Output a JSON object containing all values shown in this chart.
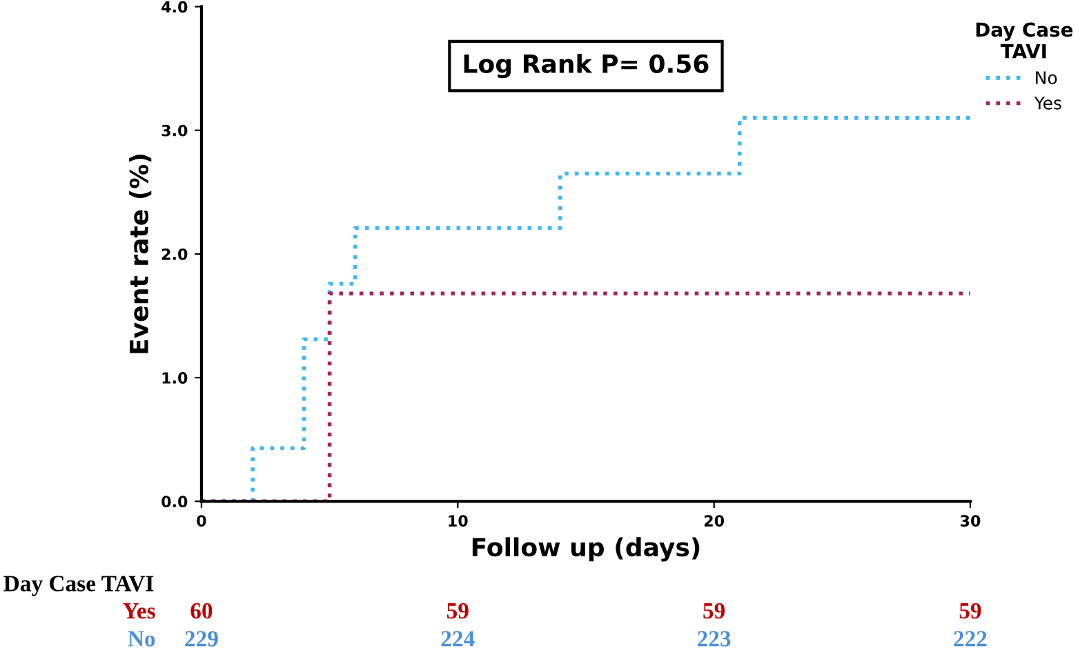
{
  "chart_data": {
    "type": "step",
    "xlabel": "Follow up (days)",
    "ylabel": "Event rate (%)",
    "legend_title": "Day Case\nTAVI",
    "series": [
      {
        "name": "No",
        "color": "#3db8f5",
        "x": [
          0,
          2,
          4,
          5,
          6,
          14,
          21,
          30
        ],
        "values": [
          0,
          0.43,
          1.31,
          1.76,
          2.21,
          2.65,
          3.1,
          3.1
        ]
      },
      {
        "name": "Yes",
        "color": "#a3265a",
        "x": [
          0,
          5,
          30
        ],
        "values": [
          0,
          1.68,
          1.68
        ]
      }
    ],
    "xlim": [
      0,
      30
    ],
    "ylim": [
      0,
      4
    ],
    "xticks": [
      0,
      10,
      20,
      30
    ],
    "yticks": [
      {
        "value": 0,
        "label": "0.0"
      },
      {
        "value": 1,
        "label": "1.0"
      },
      {
        "value": 2,
        "label": "2.0"
      },
      {
        "value": 3,
        "label": "3.0"
      },
      {
        "value": 4,
        "label": "4.0"
      }
    ],
    "annotations": [
      "Log Rank P= 0.56",
      "Day Case TAVI",
      "Yes",
      "60",
      "59",
      "59",
      "59",
      "No",
      "229",
      "224",
      "223",
      "222"
    ],
    "line_style": "dotted",
    "marker": "none",
    "grid": false,
    "legend": "top right"
  }
}
